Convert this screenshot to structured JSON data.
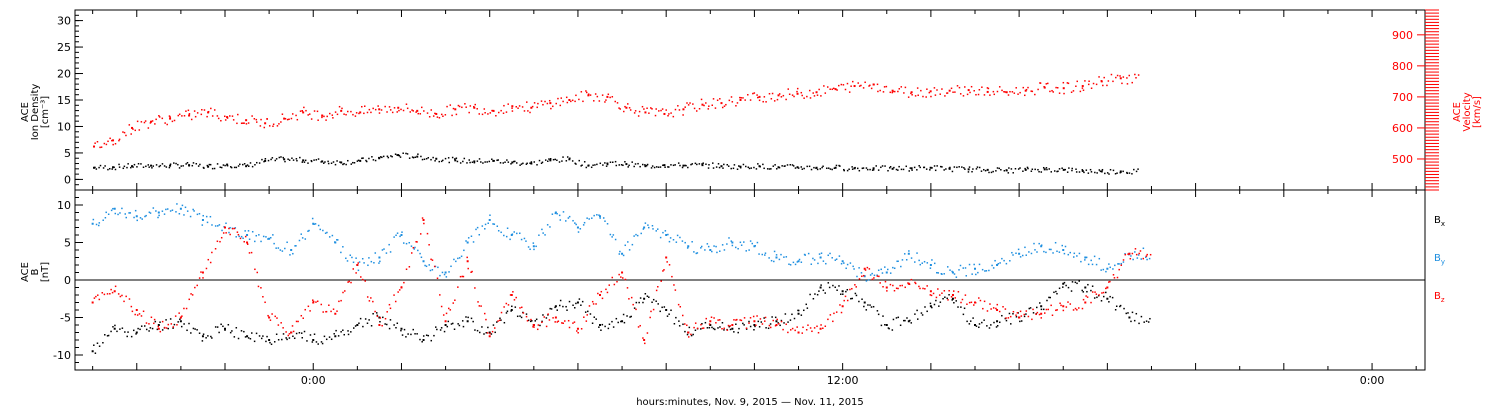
{
  "chart_data": [
    {
      "type": "scatter",
      "panel": "plasma",
      "ylabel_lines": [
        "ACE",
        "Ion Density",
        "[cm⁻³]"
      ],
      "ylim": [
        -2,
        32
      ],
      "yticks": [
        0,
        5,
        10,
        15,
        20,
        25,
        30
      ],
      "y2label_lines": [
        "ACE",
        "Velocity",
        "[km/s]"
      ],
      "y2lim": [
        400,
        980
      ],
      "y2ticks": [
        500,
        600,
        700,
        800,
        900
      ],
      "grid": false,
      "series": [
        {
          "axis": "left",
          "color": "#000000",
          "x": [
            -15,
            -14,
            -13,
            -12,
            -11,
            -10,
            -9,
            -8,
            -7,
            -6,
            -5,
            -4,
            -3,
            -2,
            -1,
            0,
            1,
            2,
            3,
            4,
            5,
            6,
            7,
            8,
            9,
            10,
            11,
            12,
            13,
            14,
            15,
            16,
            17,
            18,
            19,
            20,
            21,
            22,
            23,
            24,
            25,
            26,
            27,
            28,
            29,
            30,
            31,
            32,
            33,
            34,
            35,
            36,
            37,
            38,
            39
          ],
          "values": [
            2.2,
            2.3,
            2.5,
            2.6,
            2.6,
            2.7,
            2.4,
            2.8,
            2.5,
            3.5,
            3.8,
            3.6,
            3.4,
            3.2,
            3.5,
            4.0,
            4.6,
            4.3,
            3.9,
            3.6,
            3.4,
            3.5,
            3.2,
            3.0,
            3.6,
            3.8,
            2.6,
            3.0,
            2.9,
            2.5,
            2.7,
            2.6,
            2.7,
            2.5,
            2.4,
            2.5,
            2.3,
            2.3,
            2.2,
            2.2,
            2.1,
            2.1,
            2.0,
            2.1,
            2.2,
            2.0,
            1.9,
            1.8,
            1.7,
            1.8,
            1.9,
            1.8,
            1.6,
            1.5,
            1.5
          ]
        },
        {
          "axis": "right",
          "color": "#ff0000",
          "x": [
            -15,
            -14,
            -13,
            -12,
            -11,
            -10,
            -9,
            -8,
            -7,
            -6,
            -5,
            -4,
            -3,
            -2,
            -1,
            0,
            1,
            2,
            3,
            4,
            5,
            6,
            7,
            8,
            9,
            10,
            11,
            12,
            13,
            14,
            15,
            16,
            17,
            18,
            19,
            20,
            21,
            22,
            23,
            24,
            25,
            26,
            27,
            28,
            29,
            30,
            31,
            32,
            33,
            34,
            35,
            36,
            37,
            38,
            39
          ],
          "values": [
            540,
            560,
            600,
            620,
            630,
            640,
            650,
            635,
            625,
            615,
            630,
            650,
            640,
            655,
            650,
            660,
            665,
            655,
            645,
            660,
            665,
            655,
            670,
            665,
            680,
            690,
            705,
            700,
            665,
            650,
            645,
            660,
            675,
            680,
            690,
            700,
            705,
            710,
            715,
            725,
            735,
            740,
            720,
            715,
            718,
            720,
            722,
            716,
            715,
            720,
            730,
            728,
            735,
            750,
            760
          ]
        }
      ]
    },
    {
      "type": "scatter",
      "panel": "magnetic",
      "ylabel_lines": [
        "ACE",
        "B",
        "[nT]"
      ],
      "xlabel": "hours:minutes, Nov.  9, 2015 — Nov. 11, 2015",
      "xtick_labels": [
        "0:00",
        "12:00",
        "0:00"
      ],
      "xticks": [
        0,
        12,
        24
      ],
      "xlim": [
        -5.4,
        25.2
      ],
      "ylim": [
        -12,
        12
      ],
      "yticks": [
        -10,
        -5,
        0,
        5,
        10
      ],
      "zero_line": true,
      "grid": false,
      "series": [
        {
          "name": "Bx",
          "label_main": "B",
          "label_sub": "x",
          "color": "#000000",
          "x": [
            -5.0,
            -4.5,
            -4.0,
            -3.5,
            -3.0,
            -2.5,
            -2.0,
            -1.5,
            -1.0,
            -0.5,
            0.0,
            0.5,
            1.0,
            1.5,
            2.0,
            2.5,
            3.0,
            3.5,
            4.0,
            4.5,
            5.0,
            5.5,
            6.0,
            6.5,
            7.0,
            7.5,
            8.0,
            8.5,
            9.0,
            9.5,
            10.0,
            10.5,
            11.0,
            11.5,
            12.0,
            12.5,
            13.0,
            13.5,
            14.0,
            14.5,
            15.0,
            15.5,
            16.0,
            16.5,
            17.0,
            17.5,
            18.0,
            18.5
          ],
          "values": [
            -9.5,
            -6.5,
            -7.0,
            -6.0,
            -5.5,
            -7.5,
            -6.5,
            -7.5,
            -8.0,
            -7.0,
            -8.0,
            -7.5,
            -6.0,
            -5.0,
            -6.5,
            -8.0,
            -6.0,
            -5.5,
            -7.0,
            -4.0,
            -6.0,
            -3.5,
            -3.0,
            -6.0,
            -5.5,
            -2.5,
            -4.0,
            -7.0,
            -6.0,
            -6.5,
            -6.0,
            -5.5,
            -4.5,
            -1.0,
            -1.5,
            -3.0,
            -6.0,
            -5.5,
            -3.5,
            -2.5,
            -6.0,
            -5.5,
            -5.0,
            -3.5,
            -0.5,
            -1.0,
            -2.5,
            -5.0
          ]
        },
        {
          "name": "By",
          "label_main": "B",
          "label_sub": "y",
          "color": "#1e8fe0",
          "x": [
            -5.0,
            -4.5,
            -4.0,
            -3.5,
            -3.0,
            -2.5,
            -2.0,
            -1.5,
            -1.0,
            -0.5,
            0.0,
            0.5,
            1.0,
            1.5,
            2.0,
            2.5,
            3.0,
            3.5,
            4.0,
            4.5,
            5.0,
            5.5,
            6.0,
            6.5,
            7.0,
            7.5,
            8.0,
            8.5,
            9.0,
            9.5,
            10.0,
            10.5,
            11.0,
            11.5,
            12.0,
            12.5,
            13.0,
            13.5,
            14.0,
            14.5,
            15.0,
            15.5,
            16.0,
            16.5,
            17.0,
            17.5,
            18.0,
            18.5
          ],
          "values": [
            7.5,
            9.5,
            8.5,
            9.0,
            9.5,
            8.0,
            7.0,
            6.0,
            5.5,
            4.0,
            7.5,
            5.0,
            2.0,
            3.0,
            6.0,
            2.5,
            1.0,
            5.0,
            8.0,
            6.0,
            4.5,
            9.0,
            7.0,
            8.5,
            3.5,
            7.0,
            6.0,
            4.5,
            4.0,
            5.0,
            4.5,
            3.0,
            2.5,
            3.0,
            2.5,
            0.5,
            1.0,
            3.5,
            2.0,
            1.0,
            1.5,
            2.0,
            3.5,
            4.5,
            4.0,
            3.0,
            1.5,
            3.5
          ]
        },
        {
          "name": "Bz",
          "label_main": "B",
          "label_sub": "z",
          "color": "#ff0000",
          "x": [
            -5.0,
            -4.5,
            -4.0,
            -3.5,
            -3.0,
            -2.5,
            -2.0,
            -1.5,
            -1.0,
            -0.5,
            0.0,
            0.5,
            1.0,
            1.5,
            2.0,
            2.5,
            3.0,
            3.5,
            4.0,
            4.5,
            5.0,
            5.5,
            6.0,
            6.5,
            7.0,
            7.5,
            8.0,
            8.5,
            9.0,
            9.5,
            10.0,
            10.5,
            11.0,
            11.5,
            12.0,
            12.5,
            13.0,
            13.5,
            14.0,
            14.5,
            15.0,
            15.5,
            16.0,
            16.5,
            17.0,
            17.5,
            18.0,
            18.5
          ],
          "values": [
            -3.0,
            -1.5,
            -4.0,
            -6.5,
            -5.0,
            1.0,
            7.0,
            5.0,
            -5.0,
            -7.0,
            -3.0,
            -4.5,
            2.0,
            -6.0,
            -1.0,
            8.0,
            -5.5,
            2.5,
            -7.5,
            -2.0,
            -6.0,
            -5.0,
            -6.5,
            -2.0,
            1.0,
            -8.0,
            3.0,
            -7.0,
            -5.5,
            -6.0,
            -5.5,
            -6.0,
            -7.0,
            -6.5,
            -3.5,
            1.5,
            -1.0,
            -0.5,
            -1.5,
            -2.0,
            -3.0,
            -4.0,
            -5.0,
            -4.5,
            -3.5,
            -3.0,
            -1.0,
            3.5
          ]
        }
      ]
    }
  ]
}
